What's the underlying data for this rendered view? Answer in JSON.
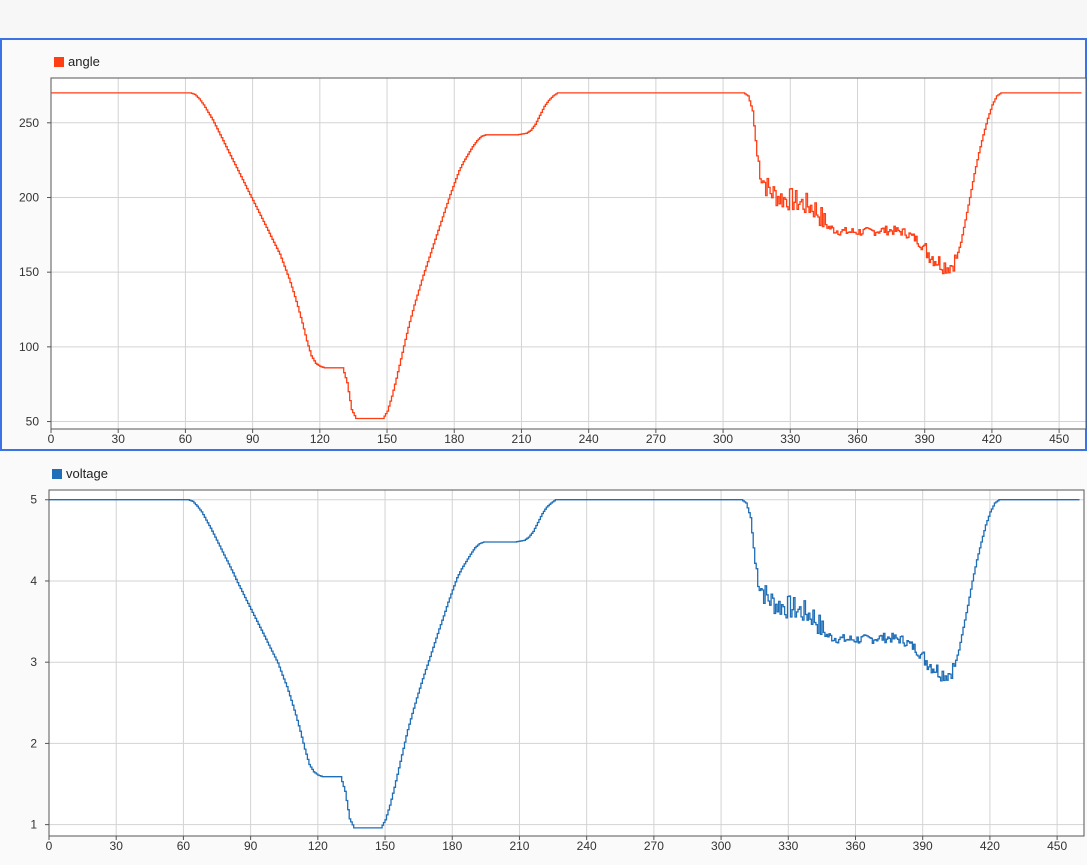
{
  "chart_data": [
    {
      "type": "line",
      "series": [
        {
          "name": "angle",
          "color": "#ff3e14",
          "points": [
            [
              0,
              270
            ],
            [
              62,
              270
            ],
            [
              64,
              269
            ],
            [
              66,
              266
            ],
            [
              68,
              262
            ],
            [
              70,
              257
            ],
            [
              72,
              252
            ],
            [
              74,
              246
            ],
            [
              76,
              240
            ],
            [
              78,
              234
            ],
            [
              80,
              228
            ],
            [
              82,
              222
            ],
            [
              84,
              216
            ],
            [
              86,
              210
            ],
            [
              88,
              204
            ],
            [
              90,
              198
            ],
            [
              92,
              192
            ],
            [
              94,
              186
            ],
            [
              96,
              180
            ],
            [
              98,
              174
            ],
            [
              100,
              168
            ],
            [
              102,
              162
            ],
            [
              104,
              154
            ],
            [
              106,
              146
            ],
            [
              108,
              137
            ],
            [
              110,
              127
            ],
            [
              112,
              116
            ],
            [
              114,
              104
            ],
            [
              116,
              94
            ],
            [
              118,
              89
            ],
            [
              120,
              87
            ],
            [
              122,
              86
            ],
            [
              124,
              86
            ],
            [
              126,
              86
            ],
            [
              128,
              86
            ],
            [
              130,
              86
            ],
            [
              132,
              76
            ],
            [
              134,
              58
            ],
            [
              136,
              52
            ],
            [
              140,
              52
            ],
            [
              144,
              52
            ],
            [
              148,
              52
            ],
            [
              150,
              57
            ],
            [
              152,
              67
            ],
            [
              154,
              79
            ],
            [
              156,
              92
            ],
            [
              158,
              105
            ],
            [
              160,
              117
            ],
            [
              162,
              128
            ],
            [
              164,
              138
            ],
            [
              166,
              148
            ],
            [
              168,
              157
            ],
            [
              170,
              166
            ],
            [
              172,
              175
            ],
            [
              174,
              184
            ],
            [
              176,
              193
            ],
            [
              178,
              202
            ],
            [
              180,
              210
            ],
            [
              182,
              218
            ],
            [
              184,
              224
            ],
            [
              186,
              229
            ],
            [
              188,
              234
            ],
            [
              190,
              238
            ],
            [
              192,
              241
            ],
            [
              194,
              242
            ],
            [
              196,
              242
            ],
            [
              200,
              242
            ],
            [
              204,
              242
            ],
            [
              208,
              242
            ],
            [
              212,
              243
            ],
            [
              214,
              245
            ],
            [
              216,
              249
            ],
            [
              218,
              255
            ],
            [
              220,
              261
            ],
            [
              222,
              265
            ],
            [
              224,
              268
            ],
            [
              226,
              270
            ],
            [
              230,
              270
            ],
            [
              260,
              270
            ],
            [
              290,
              270
            ],
            [
              309,
              270
            ],
            [
              311,
              268
            ],
            [
              313,
              258
            ],
            [
              315,
              228
            ],
            [
              317,
              214
            ],
            [
              319,
              208
            ],
            [
              321,
              204
            ],
            [
              323,
              202
            ],
            [
              325,
              200
            ],
            [
              327,
              199
            ],
            [
              329,
              199
            ],
            [
              331,
              198
            ],
            [
              333,
              197
            ],
            [
              335,
              196
            ],
            [
              337,
              195
            ],
            [
              339,
              194
            ],
            [
              341,
              192
            ],
            [
              343,
              188
            ],
            [
              345,
              183
            ],
            [
              347,
              180
            ],
            [
              350,
              178
            ],
            [
              355,
              177
            ],
            [
              360,
              177
            ],
            [
              365,
              177
            ],
            [
              370,
              178
            ],
            [
              375,
              178
            ],
            [
              380,
              177
            ],
            [
              383,
              175
            ],
            [
              386,
              172
            ],
            [
              389,
              167
            ],
            [
              392,
              162
            ],
            [
              395,
              158
            ],
            [
              398,
              155
            ],
            [
              400,
              154
            ],
            [
              402,
              155
            ],
            [
              404,
              160
            ],
            [
              406,
              170
            ],
            [
              408,
              185
            ],
            [
              410,
              200
            ],
            [
              412,
              216
            ],
            [
              414,
              230
            ],
            [
              416,
              242
            ],
            [
              418,
              253
            ],
            [
              420,
              262
            ],
            [
              422,
              268
            ],
            [
              424,
              270
            ],
            [
              430,
              270
            ],
            [
              440,
              270
            ],
            [
              450,
              270
            ],
            [
              460,
              270
            ]
          ],
          "noise": [
            [
              315,
              345,
              8
            ],
            [
              345,
              390,
              3
            ],
            [
              390,
              404,
              6
            ]
          ]
        }
      ],
      "xlim": [
        0,
        462
      ],
      "ylim": [
        45,
        280
      ],
      "xticks": [
        0,
        30,
        60,
        90,
        120,
        150,
        180,
        210,
        240,
        270,
        300,
        330,
        360,
        390,
        420,
        450
      ],
      "yticks": [
        50,
        100,
        150,
        200,
        250
      ],
      "grid": true,
      "legend_position": "top-left"
    },
    {
      "type": "line",
      "series": [
        {
          "name": "voltage",
          "color": "#1f6eb8",
          "points": [
            [
              0,
              5
            ],
            [
              62,
              5
            ],
            [
              64,
              4.98
            ],
            [
              66,
              4.92
            ],
            [
              68,
              4.85
            ],
            [
              70,
              4.75
            ],
            [
              72,
              4.65
            ],
            [
              74,
              4.54
            ],
            [
              76,
              4.43
            ],
            [
              78,
              4.32
            ],
            [
              80,
              4.21
            ],
            [
              82,
              4.1
            ],
            [
              84,
              3.98
            ],
            [
              86,
              3.87
            ],
            [
              88,
              3.76
            ],
            [
              90,
              3.65
            ],
            [
              92,
              3.54
            ],
            [
              94,
              3.43
            ],
            [
              96,
              3.32
            ],
            [
              98,
              3.21
            ],
            [
              100,
              3.1
            ],
            [
              102,
              2.99
            ],
            [
              104,
              2.84
            ],
            [
              106,
              2.7
            ],
            [
              108,
              2.53
            ],
            [
              110,
              2.35
            ],
            [
              112,
              2.15
            ],
            [
              114,
              1.93
            ],
            [
              116,
              1.74
            ],
            [
              118,
              1.65
            ],
            [
              120,
              1.61
            ],
            [
              122,
              1.59
            ],
            [
              126,
              1.59
            ],
            [
              130,
              1.59
            ],
            [
              132,
              1.41
            ],
            [
              134,
              1.07
            ],
            [
              136,
              0.96
            ],
            [
              140,
              0.96
            ],
            [
              144,
              0.96
            ],
            [
              148,
              0.96
            ],
            [
              150,
              1.06
            ],
            [
              152,
              1.24
            ],
            [
              154,
              1.46
            ],
            [
              156,
              1.7
            ],
            [
              158,
              1.94
            ],
            [
              160,
              2.17
            ],
            [
              162,
              2.37
            ],
            [
              164,
              2.56
            ],
            [
              166,
              2.74
            ],
            [
              168,
              2.91
            ],
            [
              170,
              3.07
            ],
            [
              172,
              3.24
            ],
            [
              174,
              3.41
            ],
            [
              176,
              3.57
            ],
            [
              178,
              3.74
            ],
            [
              180,
              3.89
            ],
            [
              182,
              4.04
            ],
            [
              184,
              4.15
            ],
            [
              186,
              4.24
            ],
            [
              188,
              4.33
            ],
            [
              190,
              4.41
            ],
            [
              192,
              4.46
            ],
            [
              194,
              4.48
            ],
            [
              200,
              4.48
            ],
            [
              208,
              4.48
            ],
            [
              212,
              4.5
            ],
            [
              214,
              4.54
            ],
            [
              216,
              4.61
            ],
            [
              218,
              4.72
            ],
            [
              220,
              4.83
            ],
            [
              222,
              4.91
            ],
            [
              224,
              4.96
            ],
            [
              226,
              5
            ],
            [
              230,
              5
            ],
            [
              260,
              5
            ],
            [
              290,
              5
            ],
            [
              309,
              5
            ],
            [
              311,
              4.96
            ],
            [
              313,
              4.78
            ],
            [
              315,
              4.22
            ],
            [
              317,
              3.96
            ],
            [
              319,
              3.85
            ],
            [
              321,
              3.78
            ],
            [
              323,
              3.74
            ],
            [
              325,
              3.7
            ],
            [
              327,
              3.69
            ],
            [
              329,
              3.68
            ],
            [
              331,
              3.67
            ],
            [
              333,
              3.65
            ],
            [
              335,
              3.63
            ],
            [
              337,
              3.61
            ],
            [
              339,
              3.59
            ],
            [
              341,
              3.56
            ],
            [
              343,
              3.48
            ],
            [
              345,
              3.39
            ],
            [
              347,
              3.33
            ],
            [
              350,
              3.3
            ],
            [
              355,
              3.28
            ],
            [
              360,
              3.28
            ],
            [
              365,
              3.28
            ],
            [
              370,
              3.3
            ],
            [
              375,
              3.3
            ],
            [
              380,
              3.28
            ],
            [
              383,
              3.24
            ],
            [
              386,
              3.18
            ],
            [
              389,
              3.09
            ],
            [
              392,
              3.0
            ],
            [
              395,
              2.93
            ],
            [
              398,
              2.87
            ],
            [
              400,
              2.85
            ],
            [
              402,
              2.87
            ],
            [
              404,
              2.96
            ],
            [
              406,
              3.15
            ],
            [
              408,
              3.43
            ],
            [
              410,
              3.7
            ],
            [
              412,
              4.0
            ],
            [
              414,
              4.26
            ],
            [
              416,
              4.48
            ],
            [
              418,
              4.69
            ],
            [
              420,
              4.85
            ],
            [
              422,
              4.96
            ],
            [
              424,
              5
            ],
            [
              430,
              5
            ],
            [
              440,
              5
            ],
            [
              450,
              5
            ],
            [
              460,
              5
            ]
          ],
          "noise": [
            [
              315,
              345,
              0.15
            ],
            [
              345,
              390,
              0.06
            ],
            [
              390,
              404,
              0.1
            ]
          ]
        }
      ],
      "xlim": [
        0,
        462
      ],
      "ylim": [
        0.86,
        5.12
      ],
      "xticks": [
        0,
        30,
        60,
        90,
        120,
        150,
        180,
        210,
        240,
        270,
        300,
        330,
        360,
        390,
        420,
        450
      ],
      "yticks": [
        1,
        2,
        3,
        4,
        5
      ],
      "grid": true,
      "legend_position": "top-left"
    }
  ]
}
